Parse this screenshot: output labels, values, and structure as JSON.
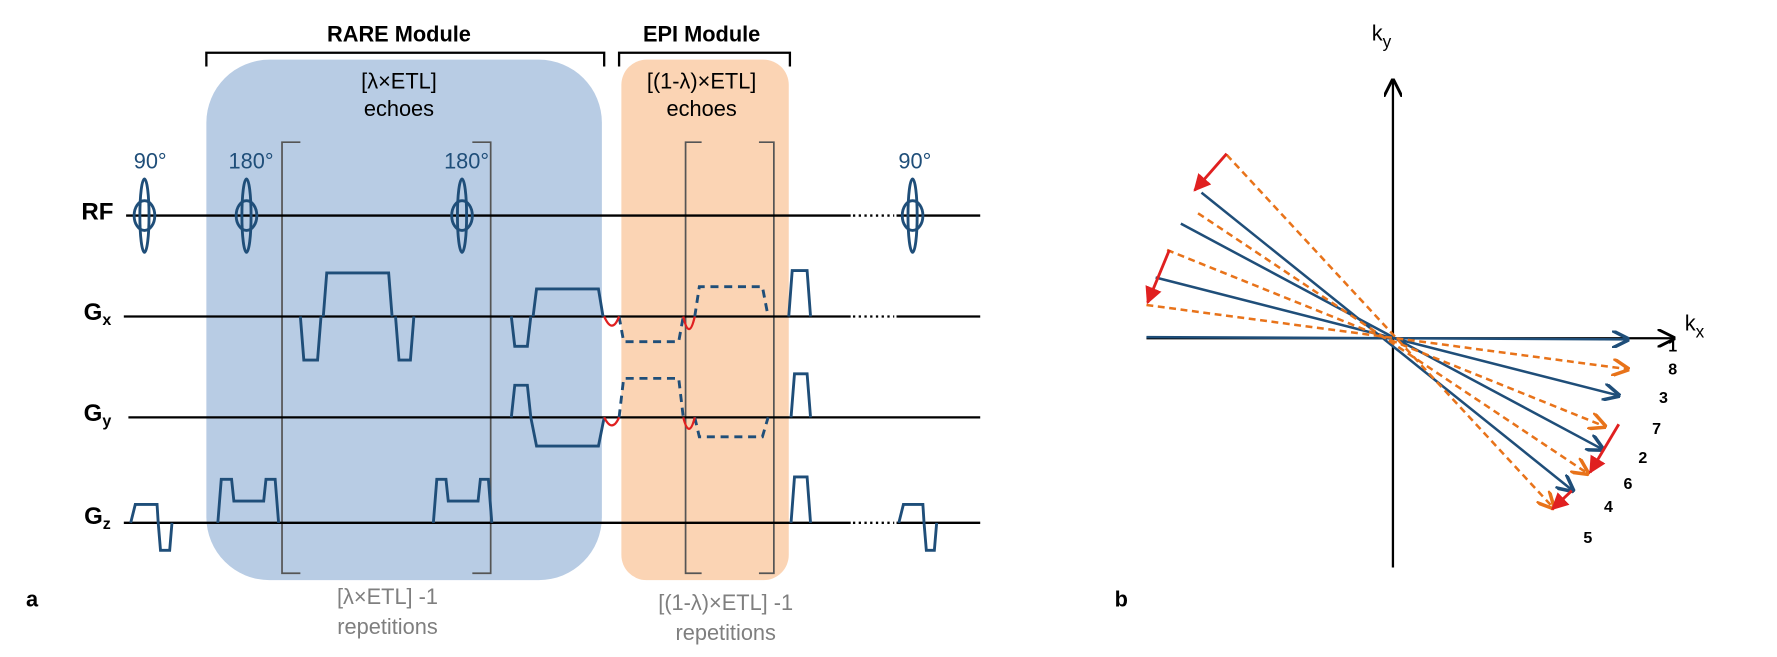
{
  "panel_a": {
    "label": "a",
    "rare_module": {
      "title": "RARE Module",
      "echoes": [
        "[λ×ETL]",
        "echoes"
      ],
      "repetitions": [
        "[λ×ETL] -1",
        "repetitions"
      ]
    },
    "epi_module": {
      "title": "EPI Module",
      "echoes": [
        "[(1-λ)×ETL]",
        "echoes"
      ],
      "repetitions": [
        "[(1-λ)×ETL] -1",
        "repetitions"
      ]
    },
    "pulses": [
      "90°",
      "180°",
      "180°",
      "90°"
    ],
    "channels": [
      {
        "main": "RF"
      },
      {
        "main": "G",
        "sub": "x"
      },
      {
        "main": "G",
        "sub": "y"
      },
      {
        "main": "G",
        "sub": "z"
      }
    ]
  },
  "panel_b": {
    "label": "b",
    "ky": {
      "main": "k",
      "sub": "y"
    },
    "kx": {
      "main": "k",
      "sub": "x"
    },
    "order": [
      "1",
      "8",
      "3",
      "7",
      "2",
      "6",
      "4",
      "5"
    ]
  }
}
